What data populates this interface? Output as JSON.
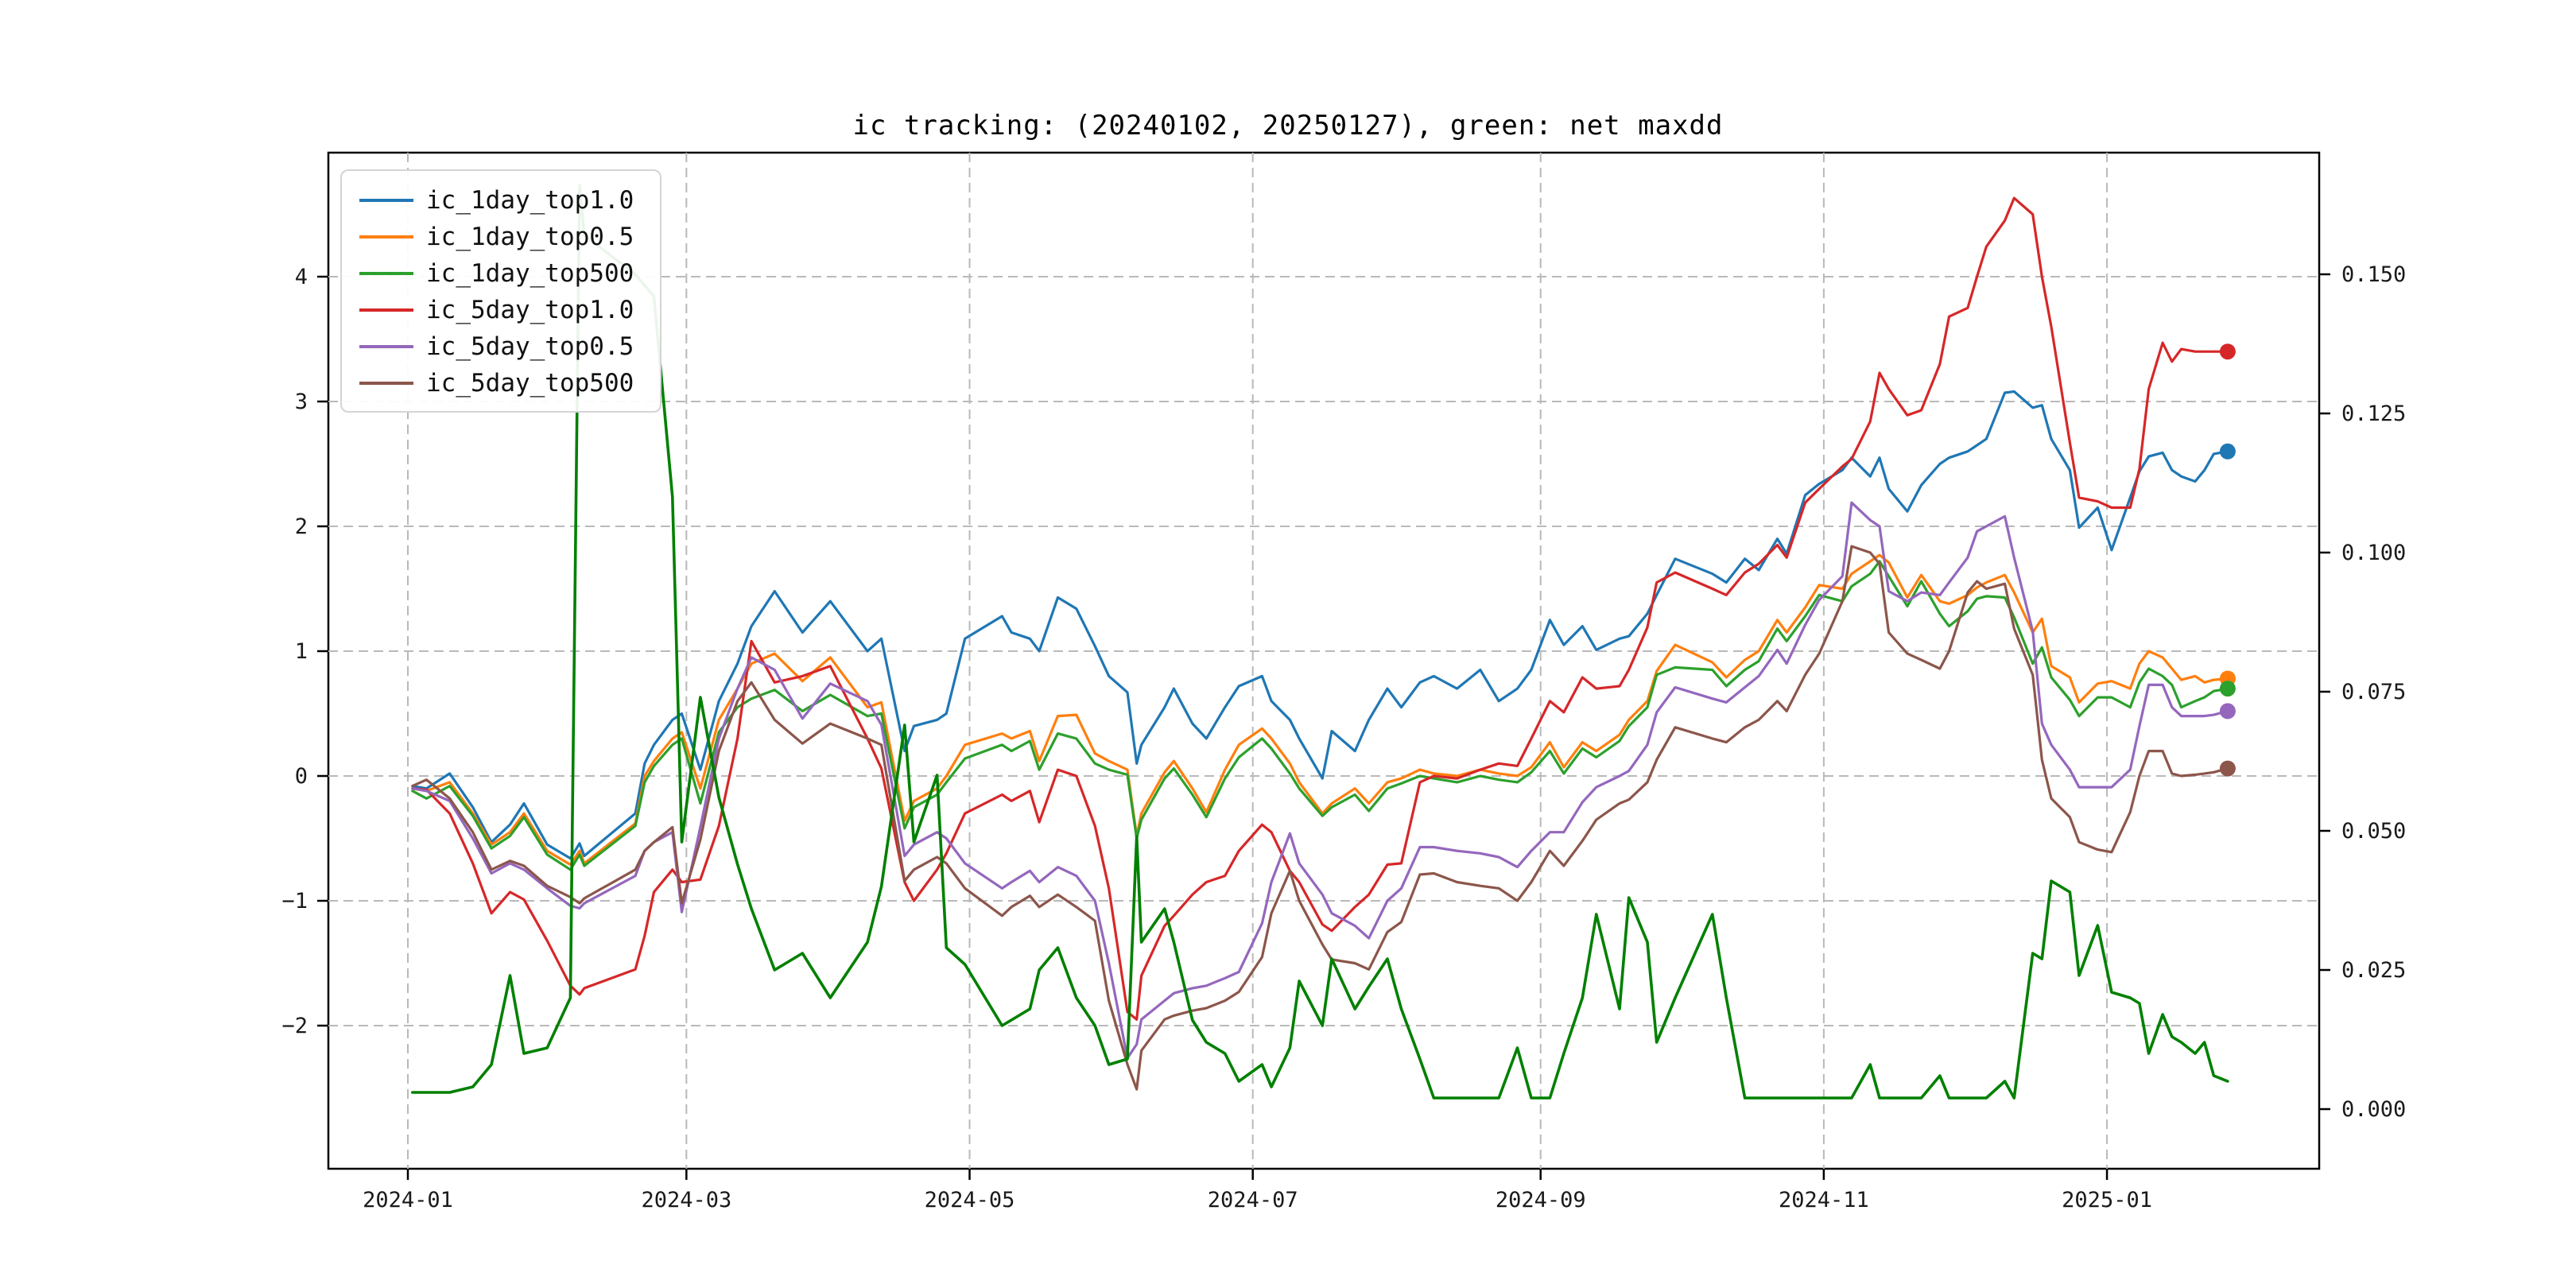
{
  "title": "ic tracking: (20240102, 20250127), green: net maxdd",
  "legend": {
    "entries": [
      {
        "label": "ic_1day_top1.0",
        "color": "#1f77b4"
      },
      {
        "label": "ic_1day_top0.5",
        "color": "#ff7f0e"
      },
      {
        "label": "ic_1day_top500",
        "color": "#2ca02c"
      },
      {
        "label": "ic_5day_top1.0",
        "color": "#d62728"
      },
      {
        "label": "ic_5day_top0.5",
        "color": "#9467bd"
      },
      {
        "label": "ic_5day_top500",
        "color": "#8c564b"
      }
    ]
  },
  "axes": {
    "x": {
      "tick_labels": [
        "2024-01",
        "2024-03",
        "2024-05",
        "2024-07",
        "2024-09",
        "2024-11",
        "2025-01"
      ]
    },
    "left": {
      "tick_values": [
        4,
        3,
        2,
        1,
        0,
        -1,
        -2
      ],
      "tick_labels": [
        "4",
        "3",
        "2",
        "1",
        "0",
        "−1",
        "−2"
      ]
    },
    "right": {
      "tick_values": [
        0.15,
        0.125,
        0.1,
        0.075,
        0.05,
        0.025,
        0.0
      ],
      "tick_labels": [
        "0.150",
        "0.125",
        "0.100",
        "0.075",
        "0.050",
        "0.025",
        "0.000"
      ]
    }
  },
  "chart_data": {
    "type": "line",
    "title": "ic tracking: (20240102, 20250127), green: net maxdd",
    "xlabel": "",
    "ylabel": "",
    "left_ylim": [
      -3.15,
      5.0
    ],
    "right_ylim": [
      -0.011,
      0.172
    ],
    "grid": true,
    "legend_position": "upper left",
    "x": [
      "2024-01-02",
      "2024-01-05",
      "2024-01-10",
      "2024-01-15",
      "2024-01-19",
      "2024-01-23",
      "2024-01-26",
      "2024-01-31",
      "2024-02-05",
      "2024-02-07",
      "2024-02-08",
      "2024-02-19",
      "2024-02-21",
      "2024-02-23",
      "2024-02-27",
      "2024-02-29",
      "2024-03-04",
      "2024-03-08",
      "2024-03-12",
      "2024-03-15",
      "2024-03-20",
      "2024-03-26",
      "2024-04-01",
      "2024-04-09",
      "2024-04-12",
      "2024-04-17",
      "2024-04-19",
      "2024-04-24",
      "2024-04-26",
      "2024-04-30",
      "2024-05-08",
      "2024-05-10",
      "2024-05-14",
      "2024-05-16",
      "2024-05-20",
      "2024-05-24",
      "2024-05-28",
      "2024-05-31",
      "2024-06-04",
      "2024-06-06",
      "2024-06-07",
      "2024-06-12",
      "2024-06-14",
      "2024-06-18",
      "2024-06-21",
      "2024-06-25",
      "2024-06-28",
      "2024-07-03",
      "2024-07-05",
      "2024-07-09",
      "2024-07-11",
      "2024-07-16",
      "2024-07-18",
      "2024-07-23",
      "2024-07-26",
      "2024-07-30",
      "2024-08-02",
      "2024-08-06",
      "2024-08-09",
      "2024-08-14",
      "2024-08-19",
      "2024-08-23",
      "2024-08-27",
      "2024-08-30",
      "2024-09-03",
      "2024-09-06",
      "2024-09-10",
      "2024-09-13",
      "2024-09-18",
      "2024-09-20",
      "2024-09-24",
      "2024-09-26",
      "2024-09-30",
      "2024-10-08",
      "2024-10-11",
      "2024-10-15",
      "2024-10-18",
      "2024-10-22",
      "2024-10-24",
      "2024-10-28",
      "2024-10-31",
      "2024-11-05",
      "2024-11-07",
      "2024-11-11",
      "2024-11-13",
      "2024-11-15",
      "2024-11-19",
      "2024-11-22",
      "2024-11-26",
      "2024-11-28",
      "2024-12-02",
      "2024-12-04",
      "2024-12-06",
      "2024-12-10",
      "2024-12-12",
      "2024-12-16",
      "2024-12-18",
      "2024-12-20",
      "2024-12-24",
      "2024-12-26",
      "2024-12-30",
      "2025-01-02",
      "2025-01-06",
      "2025-01-08",
      "2025-01-10",
      "2025-01-13",
      "2025-01-15",
      "2025-01-17",
      "2025-01-20",
      "2025-01-22",
      "2025-01-24",
      "2025-01-27"
    ],
    "series": [
      {
        "name": "ic_1day_top1.0",
        "color": "#1f77b4",
        "axis": "left",
        "end_marker": true,
        "values": [
          -0.08,
          -0.1,
          0.02,
          -0.25,
          -0.53,
          -0.39,
          -0.22,
          -0.55,
          -0.66,
          -0.54,
          -0.64,
          -0.3,
          0.1,
          0.25,
          0.45,
          0.5,
          0.05,
          0.6,
          0.9,
          1.2,
          1.48,
          1.15,
          1.4,
          1.0,
          1.1,
          0.2,
          0.4,
          0.45,
          0.5,
          1.1,
          1.28,
          1.15,
          1.1,
          1.0,
          1.43,
          1.34,
          1.04,
          0.8,
          0.67,
          0.1,
          0.25,
          0.55,
          0.7,
          0.42,
          0.3,
          0.55,
          0.72,
          0.8,
          0.6,
          0.45,
          0.3,
          -0.02,
          0.36,
          0.2,
          0.45,
          0.7,
          0.55,
          0.75,
          0.8,
          0.7,
          0.85,
          0.6,
          0.7,
          0.85,
          1.25,
          1.05,
          1.2,
          1.01,
          1.1,
          1.12,
          1.3,
          1.45,
          1.74,
          1.62,
          1.55,
          1.74,
          1.65,
          1.9,
          1.78,
          2.25,
          2.34,
          2.45,
          2.55,
          2.4,
          2.55,
          2.3,
          2.12,
          2.33,
          2.5,
          2.55,
          2.6,
          2.65,
          2.7,
          3.07,
          3.08,
          2.95,
          2.97,
          2.7,
          2.45,
          1.99,
          2.15,
          1.81,
          2.23,
          2.44,
          2.56,
          2.59,
          2.45,
          2.4,
          2.36,
          2.45,
          2.58,
          2.6
        ]
      },
      {
        "name": "ic_1day_top0.5",
        "color": "#ff7f0e",
        "axis": "left",
        "end_marker": true,
        "values": [
          -0.1,
          -0.12,
          -0.05,
          -0.3,
          -0.55,
          -0.45,
          -0.3,
          -0.6,
          -0.71,
          -0.6,
          -0.7,
          -0.38,
          0.0,
          0.12,
          0.3,
          0.35,
          -0.1,
          0.45,
          0.7,
          0.9,
          0.98,
          0.76,
          0.95,
          0.55,
          0.59,
          -0.36,
          -0.2,
          -0.1,
          0.0,
          0.25,
          0.34,
          0.3,
          0.36,
          0.12,
          0.48,
          0.49,
          0.18,
          0.12,
          0.05,
          -0.48,
          -0.3,
          0.03,
          0.12,
          -0.1,
          -0.29,
          0.05,
          0.25,
          0.38,
          0.3,
          0.1,
          -0.05,
          -0.3,
          -0.22,
          -0.1,
          -0.22,
          -0.05,
          -0.02,
          0.05,
          0.02,
          0.0,
          0.05,
          0.02,
          0.0,
          0.07,
          0.27,
          0.07,
          0.27,
          0.2,
          0.33,
          0.45,
          0.6,
          0.84,
          1.05,
          0.91,
          0.79,
          0.93,
          1.0,
          1.25,
          1.15,
          1.35,
          1.53,
          1.5,
          1.62,
          1.72,
          1.77,
          1.71,
          1.43,
          1.61,
          1.4,
          1.38,
          1.45,
          1.51,
          1.55,
          1.61,
          1.47,
          1.15,
          1.26,
          0.88,
          0.79,
          0.59,
          0.74,
          0.76,
          0.7,
          0.9,
          1.0,
          0.95,
          0.86,
          0.77,
          0.8,
          0.75,
          0.77,
          0.78
        ]
      },
      {
        "name": "ic_1day_top500",
        "color": "#2ca02c",
        "axis": "left",
        "end_marker": true,
        "values": [
          -0.12,
          -0.18,
          -0.08,
          -0.32,
          -0.58,
          -0.48,
          -0.33,
          -0.63,
          -0.75,
          -0.63,
          -0.72,
          -0.4,
          -0.05,
          0.08,
          0.25,
          0.3,
          -0.22,
          0.35,
          0.55,
          0.62,
          0.69,
          0.52,
          0.65,
          0.48,
          0.5,
          -0.42,
          -0.25,
          -0.15,
          -0.05,
          0.14,
          0.25,
          0.2,
          0.28,
          0.05,
          0.34,
          0.3,
          0.1,
          0.05,
          0.01,
          -0.5,
          -0.35,
          -0.02,
          0.06,
          -0.15,
          -0.33,
          -0.02,
          0.15,
          0.3,
          0.22,
          0.02,
          -0.1,
          -0.32,
          -0.25,
          -0.15,
          -0.28,
          -0.1,
          -0.06,
          0.0,
          -0.02,
          -0.05,
          0.0,
          -0.03,
          -0.05,
          0.03,
          0.2,
          0.02,
          0.22,
          0.15,
          0.28,
          0.4,
          0.55,
          0.81,
          0.87,
          0.85,
          0.72,
          0.85,
          0.92,
          1.18,
          1.08,
          1.28,
          1.45,
          1.4,
          1.52,
          1.62,
          1.72,
          1.6,
          1.36,
          1.56,
          1.3,
          1.2,
          1.32,
          1.42,
          1.44,
          1.43,
          1.27,
          0.9,
          1.03,
          0.79,
          0.61,
          0.48,
          0.63,
          0.63,
          0.55,
          0.75,
          0.86,
          0.8,
          0.73,
          0.55,
          0.6,
          0.63,
          0.68,
          0.7
        ]
      },
      {
        "name": "ic_5day_top1.0",
        "color": "#d62728",
        "axis": "left",
        "end_marker": true,
        "values": [
          -0.1,
          -0.11,
          -0.3,
          -0.7,
          -1.1,
          -0.93,
          -0.99,
          -1.32,
          -1.68,
          -1.75,
          -1.7,
          -1.55,
          -1.28,
          -0.93,
          -0.75,
          -0.85,
          -0.83,
          -0.4,
          0.3,
          1.08,
          0.75,
          0.8,
          0.88,
          0.3,
          0.06,
          -0.85,
          -1.0,
          -0.75,
          -0.62,
          -0.3,
          -0.15,
          -0.2,
          -0.12,
          -0.37,
          0.05,
          0.0,
          -0.4,
          -0.9,
          -1.89,
          -1.95,
          -1.6,
          -1.2,
          -1.12,
          -0.95,
          -0.85,
          -0.8,
          -0.6,
          -0.39,
          -0.45,
          -0.76,
          -0.85,
          -1.19,
          -1.24,
          -1.05,
          -0.95,
          -0.71,
          -0.7,
          -0.05,
          0.0,
          -0.02,
          0.05,
          0.1,
          0.08,
          0.3,
          0.6,
          0.51,
          0.79,
          0.7,
          0.72,
          0.85,
          1.19,
          1.55,
          1.63,
          1.5,
          1.45,
          1.63,
          1.7,
          1.85,
          1.75,
          2.19,
          2.3,
          2.48,
          2.54,
          2.84,
          3.23,
          3.1,
          2.89,
          2.93,
          3.3,
          3.68,
          3.75,
          4.0,
          4.24,
          4.45,
          4.63,
          4.5,
          4.0,
          3.6,
          2.67,
          2.23,
          2.2,
          2.15,
          2.15,
          2.46,
          3.1,
          3.47,
          3.32,
          3.42,
          3.4,
          3.4,
          3.4,
          3.4
        ]
      },
      {
        "name": "ic_5day_top0.5",
        "color": "#9467bd",
        "axis": "left",
        "end_marker": true,
        "values": [
          -0.1,
          -0.12,
          -0.2,
          -0.5,
          -0.78,
          -0.7,
          -0.75,
          -0.9,
          -1.04,
          -1.06,
          -1.02,
          -0.8,
          -0.6,
          -0.53,
          -0.45,
          -1.09,
          -0.41,
          0.3,
          0.7,
          0.95,
          0.85,
          0.46,
          0.74,
          0.6,
          0.41,
          -0.64,
          -0.55,
          -0.45,
          -0.5,
          -0.7,
          -0.9,
          -0.85,
          -0.76,
          -0.85,
          -0.73,
          -0.8,
          -1.0,
          -1.5,
          -2.26,
          -2.15,
          -1.95,
          -1.8,
          -1.74,
          -1.7,
          -1.68,
          -1.62,
          -1.57,
          -1.18,
          -0.85,
          -0.46,
          -0.7,
          -0.95,
          -1.1,
          -1.2,
          -1.3,
          -1.0,
          -0.9,
          -0.57,
          -0.57,
          -0.6,
          -0.62,
          -0.65,
          -0.73,
          -0.6,
          -0.45,
          -0.45,
          -0.21,
          -0.09,
          0.0,
          0.04,
          0.25,
          0.51,
          0.71,
          0.62,
          0.59,
          0.71,
          0.8,
          1.01,
          0.9,
          1.21,
          1.41,
          1.6,
          2.19,
          2.05,
          2.0,
          1.48,
          1.4,
          1.47,
          1.45,
          1.55,
          1.75,
          1.96,
          2.0,
          2.08,
          1.75,
          1.16,
          0.42,
          0.25,
          0.05,
          -0.09,
          -0.09,
          -0.09,
          0.05,
          0.4,
          0.73,
          0.73,
          0.55,
          0.48,
          0.48,
          0.48,
          0.49,
          0.52
        ]
      },
      {
        "name": "ic_5day_top500",
        "color": "#8c564b",
        "axis": "left",
        "end_marker": true,
        "values": [
          -0.08,
          -0.03,
          -0.18,
          -0.45,
          -0.75,
          -0.68,
          -0.72,
          -0.88,
          -0.97,
          -1.02,
          -0.98,
          -0.75,
          -0.6,
          -0.53,
          -0.41,
          -1.02,
          -0.51,
          0.2,
          0.6,
          0.75,
          0.45,
          0.26,
          0.42,
          0.3,
          0.25,
          -0.84,
          -0.75,
          -0.65,
          -0.7,
          -0.9,
          -1.12,
          -1.05,
          -0.96,
          -1.05,
          -0.95,
          -1.05,
          -1.16,
          -1.8,
          -2.31,
          -2.51,
          -2.2,
          -1.95,
          -1.92,
          -1.88,
          -1.86,
          -1.8,
          -1.73,
          -1.45,
          -1.1,
          -0.76,
          -1.0,
          -1.35,
          -1.47,
          -1.5,
          -1.55,
          -1.25,
          -1.17,
          -0.79,
          -0.78,
          -0.85,
          -0.88,
          -0.9,
          -1.0,
          -0.85,
          -0.6,
          -0.72,
          -0.52,
          -0.35,
          -0.22,
          -0.19,
          -0.05,
          0.13,
          0.39,
          0.3,
          0.27,
          0.39,
          0.45,
          0.6,
          0.52,
          0.81,
          0.98,
          1.4,
          1.84,
          1.79,
          1.7,
          1.15,
          0.98,
          0.93,
          0.86,
          1.0,
          1.47,
          1.56,
          1.5,
          1.54,
          1.18,
          0.81,
          0.13,
          -0.18,
          -0.33,
          -0.53,
          -0.59,
          -0.61,
          -0.29,
          0.0,
          0.2,
          0.2,
          0.02,
          0.0,
          0.01,
          0.02,
          0.03,
          0.06
        ]
      },
      {
        "name": "net maxdd",
        "color": "#008000",
        "axis": "right",
        "end_marker": false,
        "values": [
          0.003,
          0.003,
          0.003,
          0.004,
          0.008,
          0.024,
          0.01,
          0.011,
          0.02,
          0.166,
          0.157,
          0.15,
          0.148,
          0.146,
          0.11,
          0.048,
          0.074,
          0.056,
          0.044,
          0.036,
          0.025,
          0.028,
          0.02,
          0.03,
          0.04,
          0.069,
          0.048,
          0.06,
          0.029,
          0.026,
          0.015,
          0.016,
          0.018,
          0.025,
          0.029,
          0.02,
          0.015,
          0.008,
          0.009,
          0.049,
          0.03,
          0.036,
          0.03,
          0.016,
          0.012,
          0.01,
          0.005,
          0.008,
          0.004,
          0.011,
          0.023,
          0.015,
          0.027,
          0.018,
          0.022,
          0.027,
          0.018,
          0.009,
          0.002,
          0.002,
          0.002,
          0.002,
          0.011,
          0.002,
          0.002,
          0.01,
          0.02,
          0.035,
          0.018,
          0.038,
          0.03,
          0.012,
          0.02,
          0.035,
          0.02,
          0.002,
          0.002,
          0.002,
          0.002,
          0.002,
          0.002,
          0.002,
          0.002,
          0.008,
          0.002,
          0.002,
          0.002,
          0.002,
          0.006,
          0.002,
          0.002,
          0.002,
          0.002,
          0.005,
          0.002,
          0.028,
          0.027,
          0.041,
          0.039,
          0.024,
          0.033,
          0.021,
          0.02,
          0.019,
          0.01,
          0.017,
          0.013,
          0.012,
          0.01,
          0.012,
          0.006,
          0.005
        ]
      }
    ]
  }
}
